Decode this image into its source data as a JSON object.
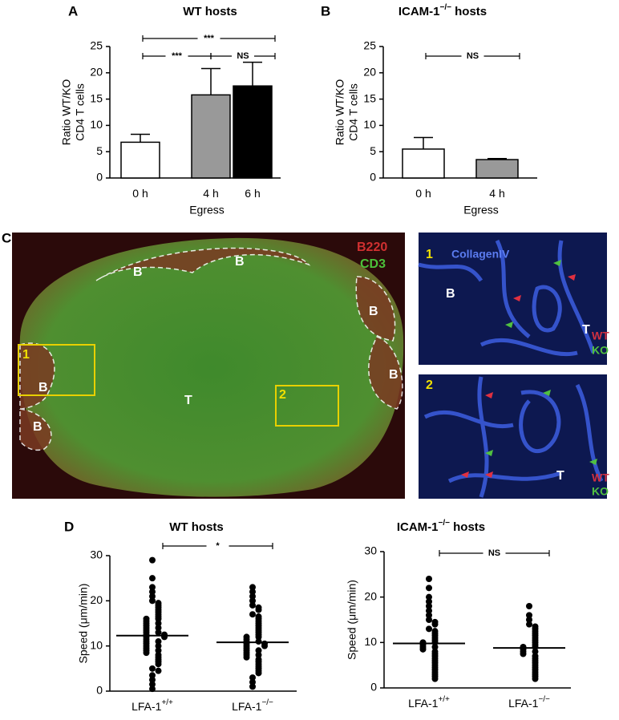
{
  "chart_data": [
    {
      "type": "bar",
      "panel": "A",
      "title": "WT hosts",
      "ylabel": [
        "Ratio WT/KO",
        "CD4 T cells"
      ],
      "xlabel": "Egress",
      "categories": [
        "0 h",
        "4 h",
        "6 h"
      ],
      "values": [
        6.8,
        15.8,
        17.5
      ],
      "errors": [
        1.5,
        5.0,
        4.5
      ],
      "colors": [
        "#ffffff",
        "#999999",
        "#000000"
      ],
      "ylim": [
        0,
        25
      ],
      "yticks": [
        0,
        5,
        10,
        15,
        20,
        25
      ],
      "annotations": [
        {
          "text": "***",
          "between": [
            "0 h",
            "6 h"
          ]
        },
        {
          "text": "***",
          "between": [
            "0 h",
            "4 h"
          ]
        },
        {
          "text": "NS",
          "between": [
            "4 h",
            "6 h"
          ]
        }
      ]
    },
    {
      "type": "bar",
      "panel": "B",
      "title": "ICAM-1",
      "title_superscript": "−/−",
      "title_suffix": " hosts",
      "ylabel": [
        "Ratio WT/KO",
        "CD4 T cells"
      ],
      "xlabel": "Egress",
      "categories": [
        "0 h",
        "4 h"
      ],
      "values": [
        5.5,
        3.5
      ],
      "errors": [
        2.2,
        0.2
      ],
      "colors": [
        "#ffffff",
        "#999999"
      ],
      "ylim": [
        0,
        25
      ],
      "yticks": [
        0,
        5,
        10,
        15,
        20,
        25
      ],
      "annotations": [
        {
          "text": "NS",
          "between": [
            "0 h",
            "4 h"
          ]
        }
      ]
    },
    {
      "type": "dot",
      "panel": "D",
      "title": "WT hosts",
      "ylabel": "Speed (μm/min)",
      "categories": [
        "LFA-1",
        "LFA-1"
      ],
      "category_superscripts": [
        "+/+",
        "−/−"
      ],
      "values": [
        [
          29,
          25,
          23,
          22,
          21,
          20,
          19.5,
          19,
          18.5,
          18,
          17.5,
          17,
          16.5,
          16,
          16,
          15.5,
          15,
          15,
          14.5,
          14,
          14,
          13.5,
          13,
          13,
          12.5,
          12.5,
          12,
          12,
          11.5,
          11,
          11,
          10.5,
          10,
          10,
          9.5,
          9,
          9,
          8.5,
          8,
          7.5,
          7,
          6.5,
          6,
          5,
          4.5,
          3.5,
          2.5,
          1.5,
          0.5
        ],
        [
          23,
          22,
          21,
          20,
          19,
          18.5,
          18,
          17,
          16.5,
          16,
          15.5,
          15,
          14.5,
          14,
          13.5,
          13,
          12.5,
          12,
          12,
          11.5,
          11,
          11,
          10.5,
          10.5,
          10,
          10,
          9.5,
          9,
          9,
          8.5,
          8,
          8,
          7.5,
          7,
          6.5,
          6,
          5.5,
          5,
          4.5,
          4,
          3,
          2,
          1
        ]
      ],
      "medians": [
        12.3,
        10.8
      ],
      "ylim": [
        0,
        30
      ],
      "yticks": [
        0,
        10,
        20,
        30
      ],
      "annotations": [
        {
          "text": "*"
        }
      ]
    },
    {
      "type": "dot",
      "title": "ICAM-1",
      "title_superscript": "−/−",
      "title_suffix": " hosts",
      "ylabel": "Speed (μm/min)",
      "categories": [
        "LFA-1",
        "LFA-1"
      ],
      "category_superscripts": [
        "+/+",
        "−/−"
      ],
      "values": [
        [
          24,
          22,
          20,
          19,
          18,
          17,
          16,
          15,
          14.5,
          14,
          13,
          12.5,
          12,
          11.5,
          11,
          10.5,
          10,
          10,
          9.5,
          9,
          9,
          8.5,
          8,
          7.5,
          7,
          6.5,
          6,
          5.5,
          5,
          4.5,
          4,
          3.5,
          3,
          2.5,
          2
        ],
        [
          18,
          16,
          15,
          14,
          13.5,
          13,
          12.5,
          12,
          11.5,
          11,
          10.5,
          10,
          9.5,
          9,
          9,
          8.5,
          8,
          8,
          7.5,
          7,
          6.5,
          6,
          5.5,
          5,
          4.5,
          4,
          3.5,
          3,
          2.5,
          2
        ]
      ],
      "medians": [
        9.8,
        8.8
      ],
      "ylim": [
        0,
        30
      ],
      "yticks": [
        0,
        10,
        20,
        30
      ],
      "annotations": [
        {
          "text": "NS"
        }
      ]
    }
  ],
  "image_panel": {
    "label": "C",
    "channels": [
      "B220",
      "CD3"
    ],
    "regions": [
      "B",
      "B",
      "B",
      "B",
      "B",
      "B",
      "T"
    ],
    "insets": [
      "1",
      "2"
    ],
    "inset_panels": [
      {
        "number": "1",
        "stain": "CollagenIV",
        "regions": [
          "B",
          "T"
        ],
        "markers": [
          "WT",
          "KO"
        ]
      },
      {
        "number": "2",
        "regions": [
          "T"
        ],
        "markers": [
          "WT",
          "KO"
        ]
      }
    ]
  }
}
